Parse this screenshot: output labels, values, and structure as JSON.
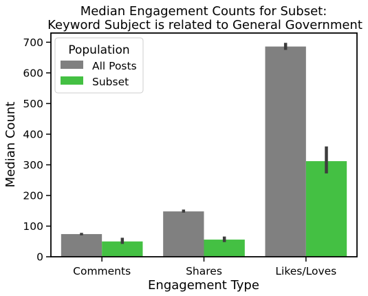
{
  "chart_data": {
    "type": "bar",
    "title": [
      "Median Engagement Counts for Subset:",
      "Keyword Subject is related to General Government"
    ],
    "xlabel": "Engagement Type",
    "ylabel": "Median Count",
    "categories": [
      "Comments",
      "Shares",
      "Likes/Loves"
    ],
    "ylim": [
      0,
      730
    ],
    "yticks": [
      0,
      100,
      200,
      300,
      400,
      500,
      600,
      700
    ],
    "grid": false,
    "legend": {
      "title": "Population",
      "placement": "top-left"
    },
    "series": [
      {
        "name": "All Posts",
        "color": "#808080",
        "values": [
          74,
          148,
          686
        ],
        "error_low": [
          70,
          144,
          675
        ],
        "error_high": [
          78,
          154,
          698
        ]
      },
      {
        "name": "Subset",
        "color": "#44c043",
        "values": [
          50,
          56,
          312
        ],
        "error_low": [
          42,
          48,
          272
        ],
        "error_high": [
          62,
          66,
          360
        ]
      }
    ],
    "errorbar_color": "#3d3d3d"
  }
}
